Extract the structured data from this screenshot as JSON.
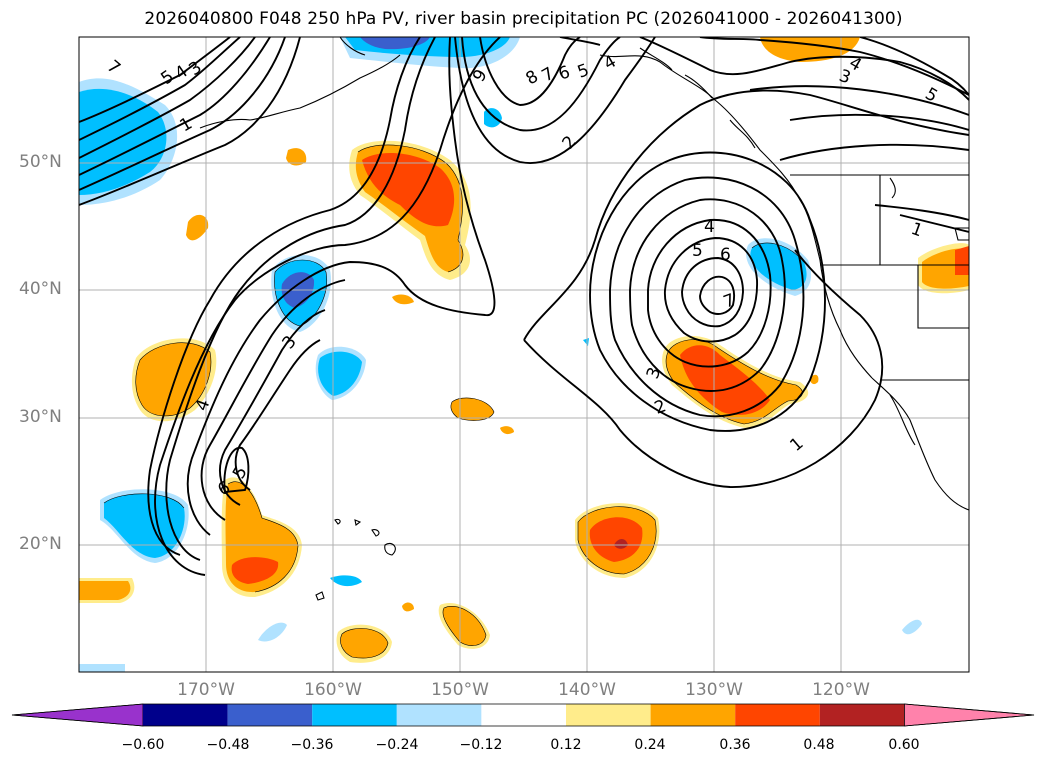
{
  "title": "2026040800 F048 250 hPa PV, river basin precipitation PC (2026041000 - 2026041300)",
  "map": {
    "lon_range": [
      -180,
      -110
    ],
    "lat_range": [
      10,
      60
    ],
    "lat_labels": [
      "50°N",
      "40°N",
      "30°N",
      "20°N"
    ],
    "lon_labels": [
      "170°W",
      "160°W",
      "150°W",
      "140°W",
      "130°W",
      "120°W"
    ]
  },
  "colorbar": {
    "colors": [
      "#9932cc",
      "#00008b",
      "#3a5fcd",
      "#00bfff",
      "#b0e2ff",
      "#ffffff",
      "#ffec8b",
      "#ffa500",
      "#ff4500",
      "#b22222",
      "#ff82ab"
    ],
    "tick_labels": [
      "−0.60",
      "−0.48",
      "−0.36",
      "−0.24",
      "−0.12",
      "0.12",
      "0.24",
      "0.36",
      "0.48",
      "0.60"
    ]
  },
  "contour_labels": {
    "pv_values": [
      "7",
      "5",
      "4",
      "3",
      "1",
      "9",
      "8",
      "7",
      "6",
      "5",
      "4",
      "2",
      "4",
      "5",
      "6",
      "7",
      "3",
      "2",
      "1",
      "4",
      "3",
      "5",
      "1",
      "4",
      "3",
      "6",
      "5"
    ]
  }
}
